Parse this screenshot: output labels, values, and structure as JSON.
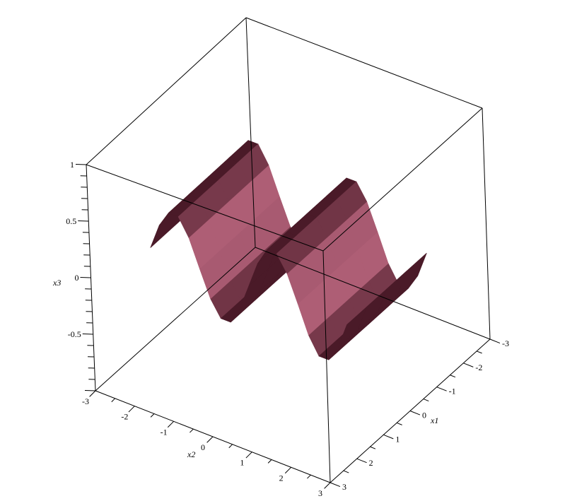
{
  "chart_data": {
    "type": "surface3d",
    "title": "",
    "axes": {
      "x1": {
        "label": "x1",
        "range": [
          -3,
          3
        ],
        "ticks": [
          -3,
          -2,
          -1,
          0,
          1,
          2,
          3
        ],
        "tick_labels": [
          "-3",
          "-2",
          "-1",
          "0",
          "1",
          "2",
          "3"
        ]
      },
      "x2": {
        "label": "x2",
        "range": [
          -3,
          3
        ],
        "ticks": [
          -3,
          -2,
          -1,
          0,
          1,
          2,
          3
        ],
        "tick_labels": [
          "-3",
          "-2",
          "-1",
          "0",
          "1",
          "2",
          "3"
        ]
      },
      "x3": {
        "label": "x3",
        "range": [
          -1,
          1
        ],
        "ticks": [
          -0.5,
          0,
          0.5,
          1
        ],
        "tick_labels": [
          "-0.5",
          "0",
          "0.5",
          "1"
        ]
      }
    },
    "box": true,
    "grid": false,
    "surface": {
      "x1": [
        -1.5,
        -0.75,
        0,
        0.75,
        1.5
      ],
      "x2": [
        -2.5,
        -2.25,
        -2.0,
        -1.75,
        -1.5,
        -1.25,
        -1.0,
        -0.75,
        -0.5,
        -0.25,
        0,
        0.25,
        0.5,
        0.75,
        1.0,
        1.25,
        1.5,
        1.75,
        2.0,
        2.25,
        2.5
      ],
      "x3": [
        [
          0.01,
          0.24,
          0.38,
          0.38,
          0.23,
          -0.01,
          -0.24,
          -0.38,
          -0.38,
          -0.23,
          0,
          0.23,
          0.38,
          0.38,
          0.24,
          0.01,
          -0.23,
          -0.38,
          -0.38,
          -0.24,
          -0.01
        ],
        [
          0.01,
          0.24,
          0.38,
          0.38,
          0.23,
          -0.01,
          -0.24,
          -0.38,
          -0.38,
          -0.23,
          0,
          0.23,
          0.38,
          0.38,
          0.24,
          0.01,
          -0.23,
          -0.38,
          -0.38,
          -0.24,
          -0.01
        ],
        [
          0.01,
          0.24,
          0.38,
          0.38,
          0.23,
          -0.01,
          -0.24,
          -0.38,
          -0.38,
          -0.23,
          0,
          0.23,
          0.38,
          0.38,
          0.24,
          0.01,
          -0.23,
          -0.38,
          -0.38,
          -0.24,
          -0.01
        ],
        [
          0.01,
          0.24,
          0.38,
          0.38,
          0.23,
          -0.01,
          -0.24,
          -0.38,
          -0.38,
          -0.23,
          0,
          0.23,
          0.38,
          0.38,
          0.24,
          0.01,
          -0.23,
          -0.38,
          -0.38,
          -0.24,
          -0.01
        ],
        [
          0.01,
          0.24,
          0.38,
          0.38,
          0.23,
          -0.01,
          -0.24,
          -0.38,
          -0.38,
          -0.23,
          0,
          0.23,
          0.38,
          0.38,
          0.24,
          0.01,
          -0.23,
          -0.38,
          -0.38,
          -0.24,
          -0.01
        ]
      ]
    },
    "colors": {
      "surface_dark": "#4a1a28",
      "surface_light": "#f28caa",
      "box": "#000000"
    }
  }
}
